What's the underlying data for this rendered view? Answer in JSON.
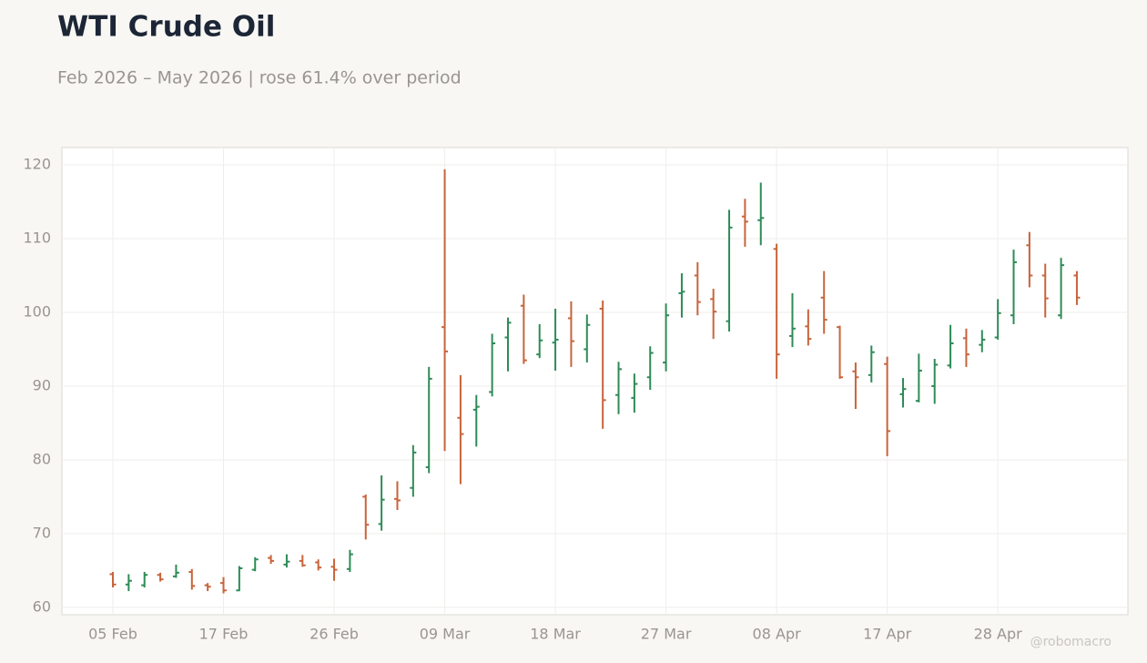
{
  "chart_data": {
    "type": "ohlc",
    "title": "WTI Crude Oil",
    "subtitle": "Feb 2026 – May 2026 | rose 61.4% over period",
    "watermark": "@robomacro",
    "categories": [
      "05 Feb",
      null,
      null,
      null,
      null,
      null,
      null,
      "17 Feb",
      null,
      null,
      null,
      null,
      null,
      null,
      "26 Feb",
      null,
      null,
      null,
      null,
      null,
      null,
      "09 Mar",
      null,
      null,
      null,
      null,
      null,
      null,
      "18 Mar",
      null,
      null,
      null,
      null,
      null,
      null,
      "27 Mar",
      null,
      null,
      null,
      null,
      null,
      null,
      "08 Apr",
      null,
      null,
      null,
      null,
      null,
      null,
      "17 Apr",
      null,
      null,
      null,
      null,
      null,
      null,
      "28 Apr",
      null,
      null,
      null,
      null,
      null
    ],
    "open": [
      64.5,
      63.1,
      63.0,
      64.4,
      64.2,
      64.8,
      63.0,
      63.3,
      62.3,
      65.1,
      66.7,
      65.8,
      66.3,
      66.1,
      65.5,
      65.2,
      75.0,
      71.3,
      74.7,
      76.2,
      79.0,
      98.0,
      85.7,
      86.8,
      89.2,
      96.6,
      100.9,
      94.3,
      95.9,
      99.2,
      95.0,
      100.5,
      88.8,
      88.4,
      91.2,
      93.2,
      102.6,
      105.0,
      101.8,
      98.8,
      113.0,
      112.5,
      108.6,
      96.8,
      98.1,
      102.0,
      98.0,
      92.0,
      91.5,
      93.0,
      88.9,
      88.0,
      90.0,
      92.8,
      96.5,
      95.6,
      96.6,
      99.6,
      109.1,
      105.0,
      99.6,
      105.0
    ],
    "high": [
      64.8,
      64.5,
      64.8,
      64.7,
      65.8,
      65.2,
      63.3,
      64.1,
      65.6,
      66.8,
      67.1,
      67.2,
      67.1,
      66.5,
      66.6,
      67.8,
      75.3,
      77.9,
      77.1,
      82.0,
      92.6,
      119.4,
      91.5,
      88.8,
      97.1,
      99.3,
      102.4,
      98.4,
      100.5,
      101.5,
      99.7,
      101.6,
      93.3,
      91.7,
      95.4,
      101.2,
      105.3,
      106.8,
      103.2,
      113.9,
      115.4,
      117.6,
      109.3,
      102.6,
      100.4,
      105.6,
      98.2,
      93.2,
      95.5,
      94.0,
      91.1,
      94.4,
      93.7,
      98.3,
      97.8,
      97.6,
      101.8,
      108.5,
      110.9,
      106.6,
      107.4,
      105.6
    ],
    "low": [
      62.7,
      62.2,
      62.7,
      63.5,
      64.0,
      62.4,
      62.2,
      61.9,
      62.2,
      64.9,
      65.9,
      65.4,
      65.5,
      65.0,
      63.6,
      64.8,
      69.2,
      70.4,
      73.2,
      75.0,
      78.2,
      81.2,
      76.7,
      81.8,
      88.6,
      92.0,
      93.0,
      93.8,
      92.1,
      92.6,
      93.2,
      84.2,
      86.2,
      86.4,
      89.5,
      92.0,
      99.3,
      99.6,
      96.4,
      97.4,
      108.9,
      109.1,
      91.0,
      95.3,
      95.5,
      97.1,
      91.0,
      86.9,
      90.5,
      80.5,
      87.1,
      87.8,
      87.6,
      92.4,
      92.6,
      94.6,
      96.3,
      98.4,
      103.4,
      99.3,
      99.1,
      101.0
    ],
    "close": [
      63.1,
      63.6,
      64.4,
      63.8,
      64.7,
      62.9,
      62.8,
      62.3,
      65.3,
      66.5,
      66.3,
      66.2,
      65.7,
      65.4,
      65.1,
      67.2,
      71.2,
      74.6,
      74.5,
      81.0,
      91.0,
      94.7,
      83.5,
      87.2,
      95.8,
      98.6,
      93.5,
      96.2,
      96.3,
      96.1,
      98.3,
      88.1,
      92.3,
      90.3,
      94.5,
      99.6,
      102.8,
      101.4,
      100.1,
      111.5,
      112.3,
      112.8,
      94.3,
      97.8,
      96.4,
      99.0,
      91.2,
      91.2,
      94.6,
      83.9,
      89.6,
      92.1,
      92.9,
      95.8,
      94.3,
      96.3,
      99.9,
      106.8,
      105.0,
      101.9,
      106.4,
      102.0
    ],
    "up_color": "#2e8b57",
    "down_color": "#c8643b",
    "ylim": [
      59,
      122.35
    ],
    "yticks": [
      60,
      70,
      80,
      90,
      100,
      110,
      120
    ],
    "grid": true
  }
}
